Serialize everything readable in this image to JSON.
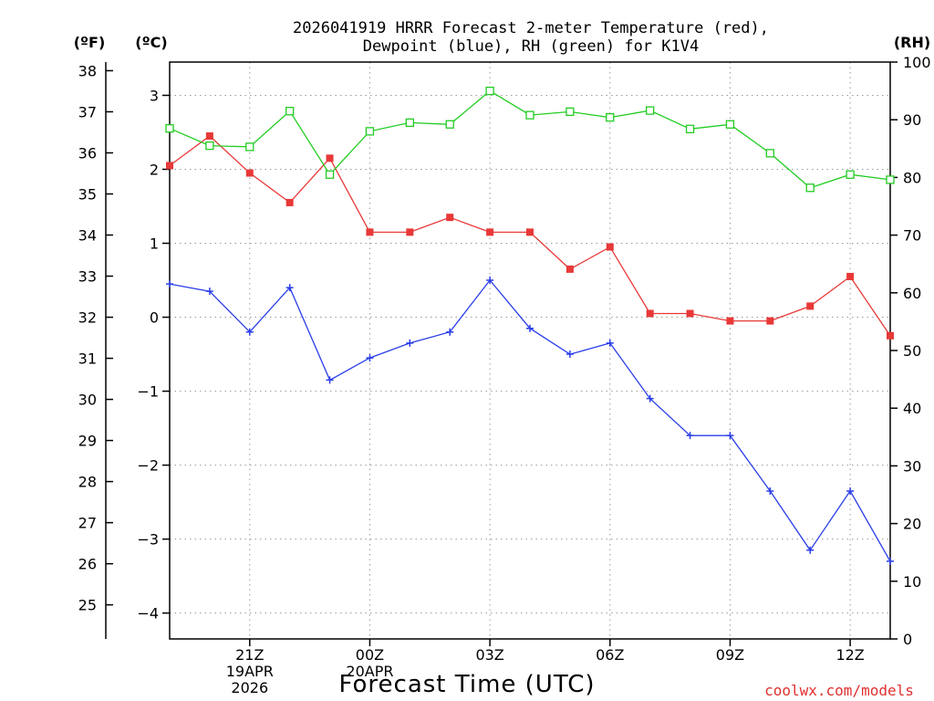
{
  "title_lines": [
    "2026041919 HRRR Forecast 2-meter Temperature (red),",
    "Dewpoint (blue), RH (green) for K1V4"
  ],
  "units": {
    "fahrenheit": "(ºF)",
    "celsius": "(ºC)",
    "rh": "(RH)"
  },
  "xlabel": "Forecast Time (UTC)",
  "credit": "coolwx.com/models",
  "colors": {
    "temperature": "#e83838",
    "dewpoint": "#2a3ee8",
    "rh": "#22cc22"
  },
  "chart_data": {
    "type": "line",
    "x_hours": [
      19,
      20,
      21,
      22,
      23,
      24,
      25,
      26,
      27,
      28,
      29,
      30,
      31,
      32,
      33,
      34,
      35,
      36,
      37
    ],
    "x_ticks": [
      {
        "hour": 21,
        "lines": [
          "21Z",
          "19APR",
          "2026"
        ]
      },
      {
        "hour": 24,
        "lines": [
          "00Z",
          "20APR"
        ]
      },
      {
        "hour": 27,
        "lines": [
          "03Z"
        ]
      },
      {
        "hour": 30,
        "lines": [
          "06Z"
        ]
      },
      {
        "hour": 33,
        "lines": [
          "09Z"
        ]
      },
      {
        "hour": 36,
        "lines": [
          "12Z"
        ]
      }
    ],
    "x_range": [
      19,
      37
    ],
    "y_celsius_range": [
      -4.35,
      3.45
    ],
    "y_celsius_ticks": [
      3,
      2,
      1,
      0,
      -1,
      -2,
      -3,
      -4
    ],
    "y_celsius_tick_labels": [
      "3",
      "2",
      "1",
      "0",
      "−1",
      "−2",
      "−3",
      "−4"
    ],
    "y_fahrenheit_ticks": [
      38,
      37,
      36,
      35,
      34,
      33,
      32,
      31,
      30,
      29,
      28,
      27,
      26,
      25
    ],
    "y_rh_range": [
      0,
      100
    ],
    "y_rh_ticks": [
      100,
      90,
      80,
      70,
      60,
      50,
      40,
      30,
      20,
      10,
      0
    ],
    "grid": true,
    "series": [
      {
        "key": "temperature",
        "axis": "celsius",
        "marker": "filled-square",
        "values": [
          2.05,
          2.45,
          1.95,
          1.55,
          2.15,
          1.15,
          1.15,
          1.35,
          1.15,
          1.15,
          0.65,
          0.95,
          0.05,
          0.05,
          -0.05,
          -0.05,
          0.15,
          0.55,
          -0.25
        ]
      },
      {
        "key": "dewpoint",
        "axis": "celsius",
        "marker": "plus",
        "values": [
          0.45,
          0.35,
          -0.2,
          0.4,
          -0.85,
          -0.55,
          -0.35,
          -0.2,
          0.5,
          -0.15,
          -0.5,
          -0.35,
          -1.1,
          -1.6,
          -1.6,
          -2.35,
          -3.15,
          -2.35,
          -3.3
        ]
      },
      {
        "key": "rh",
        "axis": "rh",
        "marker": "open-square",
        "values": [
          88.5,
          85.5,
          85.3,
          91.5,
          80.5,
          88.0,
          89.5,
          89.2,
          95.0,
          90.8,
          91.4,
          90.4,
          91.6,
          88.4,
          89.2,
          84.2,
          78.2,
          80.5,
          79.6
        ]
      }
    ]
  }
}
